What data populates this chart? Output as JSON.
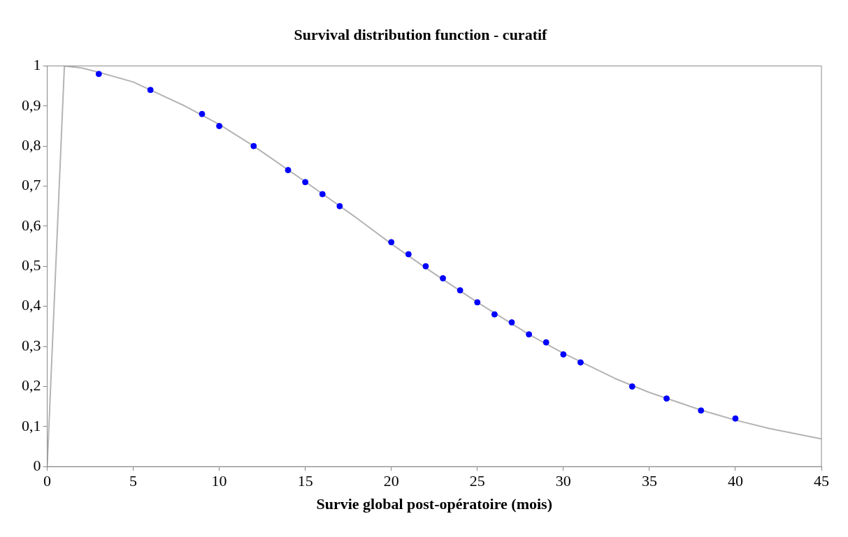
{
  "chart_data": {
    "type": "scatter",
    "title": "Survival distribution function - curatif",
    "xlabel": "Survie global post-opératoire (mois)",
    "xlim": [
      0,
      45
    ],
    "xticks": [
      0,
      5,
      10,
      15,
      20,
      25,
      30,
      35,
      40,
      45
    ],
    "ylim": [
      0,
      1
    ],
    "yticks": [
      0,
      {
        "value": 0.1,
        "label": "0,1"
      },
      {
        "value": 0.2,
        "label": "0,2"
      },
      {
        "value": 0.3,
        "label": "0,3"
      },
      {
        "value": 0.4,
        "label": "0,4"
      },
      {
        "value": 0.5,
        "label": "0,5"
      },
      {
        "value": 0.6,
        "label": "0,6"
      },
      {
        "value": 0.7,
        "label": "0,7"
      },
      {
        "value": 0.8,
        "label": "0,8"
      },
      {
        "value": 0.9,
        "label": "0,9"
      },
      1
    ],
    "grid": false,
    "legend": false,
    "series": [
      {
        "type": "line",
        "color": "#b4b4b4",
        "marker": "none",
        "x": [
          0,
          1,
          2,
          3,
          5,
          8,
          10,
          12,
          15,
          18,
          20,
          22,
          25,
          28,
          30,
          33,
          35,
          38,
          40,
          42,
          45
        ],
        "values": [
          0,
          1,
          0.995,
          0.984,
          0.96,
          0.9,
          0.854,
          0.8,
          0.711,
          0.62,
          0.556,
          0.496,
          0.41,
          0.33,
          0.283,
          0.22,
          0.185,
          0.141,
          0.116,
          0.095,
          0.069
        ]
      },
      {
        "type": "scatter",
        "color": "#0000ff",
        "marker": "circle",
        "x": [
          3,
          6,
          9,
          10,
          12,
          14,
          15,
          16,
          17,
          20,
          21,
          22,
          23,
          24,
          25,
          26,
          27,
          28,
          29,
          30,
          31,
          34,
          36,
          38,
          40
        ],
        "values": [
          0.98,
          0.94,
          0.88,
          0.85,
          0.8,
          0.74,
          0.71,
          0.68,
          0.65,
          0.56,
          0.53,
          0.5,
          0.47,
          0.44,
          0.41,
          0.38,
          0.36,
          0.33,
          0.31,
          0.28,
          0.26,
          0.2,
          0.17,
          0.14,
          0.12
        ]
      }
    ]
  }
}
